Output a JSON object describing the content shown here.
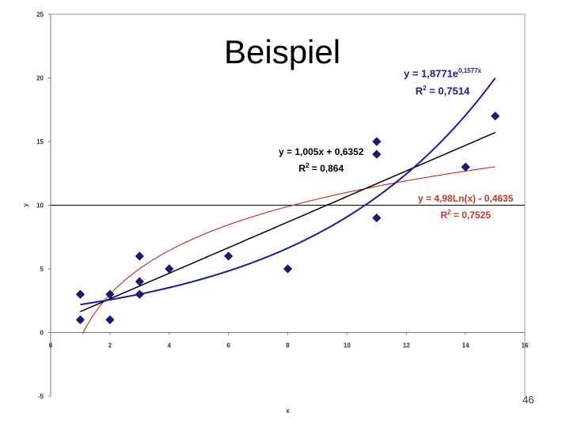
{
  "slide": {
    "title": "Beispiel",
    "page_number": "46"
  },
  "chart_data": {
    "type": "scatter",
    "xlabel": "x",
    "ylabel": "y",
    "xlim": [
      0,
      16
    ],
    "ylim": [
      -5,
      25
    ],
    "xticks": [
      0,
      2,
      4,
      6,
      8,
      10,
      12,
      14,
      16
    ],
    "yticks": [
      -5,
      0,
      5,
      10,
      15,
      20,
      25
    ],
    "grid": false,
    "points": [
      {
        "x": 1,
        "y": 3
      },
      {
        "x": 1,
        "y": 1
      },
      {
        "x": 2,
        "y": 3
      },
      {
        "x": 2,
        "y": 1
      },
      {
        "x": 3,
        "y": 6
      },
      {
        "x": 3,
        "y": 4
      },
      {
        "x": 3,
        "y": 3
      },
      {
        "x": 4,
        "y": 5
      },
      {
        "x": 6,
        "y": 6
      },
      {
        "x": 8,
        "y": 5
      },
      {
        "x": 11,
        "y": 15
      },
      {
        "x": 11,
        "y": 14
      },
      {
        "x": 11,
        "y": 9
      },
      {
        "x": 14,
        "y": 13
      },
      {
        "x": 15,
        "y": 17
      }
    ],
    "trendlines": [
      {
        "type": "linear",
        "slope": 1.005,
        "intercept": 0.6352,
        "equation": "y = 1,005x + 0,6352",
        "r2_label": "R",
        "r2_value": " = 0,864",
        "color": "#000000"
      },
      {
        "type": "exponential",
        "a": 1.8771,
        "b": 0.1577,
        "equation_base": "y = 1,8771e",
        "equation_exp": "0,1577x",
        "r2_label": "R",
        "r2_value": " = 0,7514",
        "color": "#1a1a9e"
      },
      {
        "type": "logarithmic",
        "a": 4.98,
        "b": -0.4635,
        "equation": "y = 4,98Ln(x) - 0,4635",
        "r2_label": "R",
        "r2_value": " = 0,7525",
        "color": "#c0392b"
      }
    ],
    "marker_color": "#1a1a7e",
    "reference_line_y": 10
  }
}
